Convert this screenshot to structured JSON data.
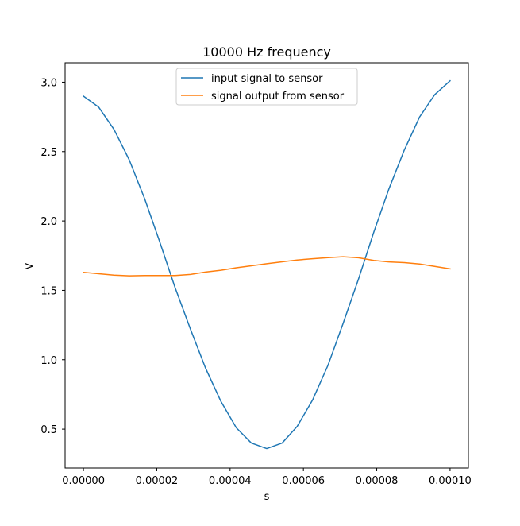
{
  "chart_data": {
    "type": "line",
    "title": "10000 Hz frequency",
    "xlabel": "s",
    "ylabel": "V",
    "xlim": [
      -5e-06,
      0.000105
    ],
    "ylim": [
      0.22,
      3.14
    ],
    "xticks": [
      0.0,
      2e-05,
      4e-05,
      6e-05,
      8e-05,
      0.0001
    ],
    "xtick_labels": [
      "0.00000",
      "0.00002",
      "0.00004",
      "0.00006",
      "0.00008",
      "0.00010"
    ],
    "yticks": [
      0.5,
      1.0,
      1.5,
      2.0,
      2.5,
      3.0
    ],
    "ytick_labels": [
      "0.5",
      "1.0",
      "1.5",
      "2.0",
      "2.5",
      "3.0"
    ],
    "grid": false,
    "legend_position": "upper center",
    "x": [
      0.0,
      4.17e-06,
      8.33e-06,
      1.25e-05,
      1.67e-05,
      2.08e-05,
      2.5e-05,
      2.92e-05,
      3.33e-05,
      3.75e-05,
      4.17e-05,
      4.58e-05,
      5e-05,
      5.42e-05,
      5.83e-05,
      6.25e-05,
      6.67e-05,
      7.08e-05,
      7.5e-05,
      7.92e-05,
      8.33e-05,
      8.75e-05,
      9.17e-05,
      9.58e-05,
      0.0001
    ],
    "series": [
      {
        "name": "input signal to sensor",
        "color": "#1f77b4",
        "values": [
          2.9,
          2.82,
          2.66,
          2.44,
          2.16,
          1.85,
          1.52,
          1.22,
          0.94,
          0.7,
          0.51,
          0.4,
          0.36,
          0.4,
          0.52,
          0.71,
          0.96,
          1.26,
          1.58,
          1.92,
          2.23,
          2.51,
          2.75,
          2.91,
          3.01
        ]
      },
      {
        "name": "signal output from sensor",
        "color": "#ff7f0e",
        "values": [
          1.63,
          1.62,
          1.61,
          1.605,
          1.607,
          1.607,
          1.607,
          1.615,
          1.632,
          1.645,
          1.663,
          1.677,
          1.692,
          1.706,
          1.719,
          1.728,
          1.736,
          1.742,
          1.735,
          1.716,
          1.705,
          1.7,
          1.69,
          1.673,
          1.655
        ]
      }
    ]
  }
}
